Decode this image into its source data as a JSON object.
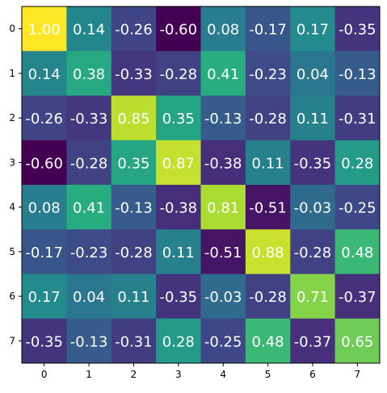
{
  "chart_data": {
    "type": "heatmap",
    "title": "",
    "xlabel": "",
    "ylabel": "",
    "colormap": "viridis",
    "vmin": -0.6,
    "vmax": 1.0,
    "grid": false,
    "x_tick_labels": [
      "0",
      "1",
      "2",
      "3",
      "4",
      "5",
      "6",
      "7"
    ],
    "y_tick_labels": [
      "0",
      "1",
      "2",
      "3",
      "4",
      "5",
      "6",
      "7"
    ],
    "values": [
      [
        1.0,
        0.14,
        -0.26,
        -0.6,
        0.08,
        -0.17,
        0.17,
        -0.35
      ],
      [
        0.14,
        0.38,
        -0.33,
        -0.28,
        0.41,
        -0.23,
        0.04,
        -0.13
      ],
      [
        -0.26,
        -0.33,
        0.85,
        0.35,
        -0.13,
        -0.28,
        0.11,
        -0.31
      ],
      [
        -0.6,
        -0.28,
        0.35,
        0.87,
        -0.38,
        0.11,
        -0.35,
        0.28
      ],
      [
        0.08,
        0.41,
        -0.13,
        -0.38,
        0.81,
        -0.51,
        -0.03,
        -0.25
      ],
      [
        -0.17,
        -0.23,
        -0.28,
        0.11,
        -0.51,
        0.88,
        -0.28,
        0.48
      ],
      [
        0.17,
        0.04,
        0.11,
        -0.35,
        -0.03,
        -0.28,
        0.71,
        -0.37
      ],
      [
        -0.35,
        -0.13,
        -0.31,
        0.28,
        -0.25,
        0.48,
        -0.37,
        0.65
      ]
    ],
    "value_labels": [
      [
        "1.00",
        "0.14",
        "-0.26",
        "-0.60",
        "0.08",
        "-0.17",
        "0.17",
        "-0.35"
      ],
      [
        "0.14",
        "0.38",
        "-0.33",
        "-0.28",
        "0.41",
        "-0.23",
        "0.04",
        "-0.13"
      ],
      [
        "-0.26",
        "-0.33",
        "0.85",
        "0.35",
        "-0.13",
        "-0.28",
        "0.11",
        "-0.31"
      ],
      [
        "-0.60",
        "-0.28",
        "0.35",
        "0.87",
        "-0.38",
        "0.11",
        "-0.35",
        "0.28"
      ],
      [
        "0.08",
        "0.41",
        "-0.13",
        "-0.38",
        "0.81",
        "-0.51",
        "-0.03",
        "-0.25"
      ],
      [
        "-0.17",
        "-0.23",
        "-0.28",
        "0.11",
        "-0.51",
        "0.88",
        "-0.28",
        "0.48"
      ],
      [
        "0.17",
        "0.04",
        "0.11",
        "-0.35",
        "-0.03",
        "-0.28",
        "0.71",
        "-0.37"
      ],
      [
        "-0.35",
        "-0.13",
        "-0.31",
        "0.28",
        "-0.25",
        "0.48",
        "-0.37",
        "0.65"
      ]
    ]
  }
}
